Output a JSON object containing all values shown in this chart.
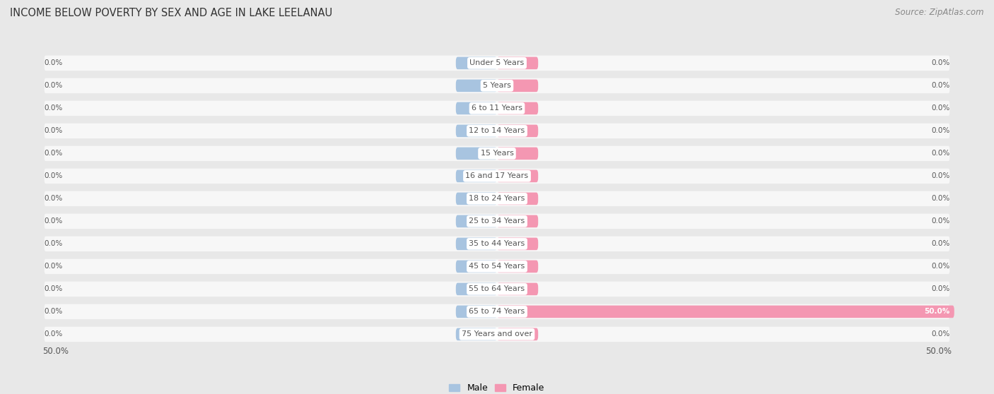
{
  "title": "INCOME BELOW POVERTY BY SEX AND AGE IN LAKE LEELANAU",
  "source": "Source: ZipAtlas.com",
  "categories": [
    "Under 5 Years",
    "5 Years",
    "6 to 11 Years",
    "12 to 14 Years",
    "15 Years",
    "16 and 17 Years",
    "18 to 24 Years",
    "25 to 34 Years",
    "35 to 44 Years",
    "45 to 54 Years",
    "55 to 64 Years",
    "65 to 74 Years",
    "75 Years and over"
  ],
  "male_values": [
    0.0,
    0.0,
    0.0,
    0.0,
    0.0,
    0.0,
    0.0,
    0.0,
    0.0,
    0.0,
    0.0,
    0.0,
    0.0
  ],
  "female_values": [
    0.0,
    0.0,
    0.0,
    0.0,
    0.0,
    0.0,
    0.0,
    0.0,
    0.0,
    0.0,
    0.0,
    50.0,
    0.0
  ],
  "male_color": "#a8c4e0",
  "female_color": "#f497b2",
  "label_color": "#555555",
  "background_color": "#e8e8e8",
  "row_bg_color": "#f7f7f7",
  "axis_limit": 50.0,
  "title_fontsize": 10.5,
  "source_fontsize": 8.5,
  "label_fontsize": 8.0,
  "value_fontsize": 7.5,
  "tick_fontsize": 8.5,
  "legend_fontsize": 9,
  "stub_size": 4.5
}
